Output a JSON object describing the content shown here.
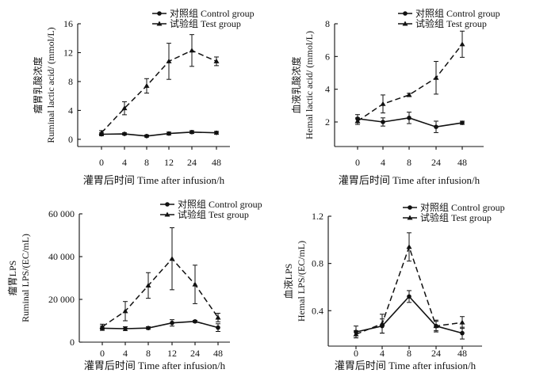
{
  "figure": {
    "colors": {
      "ink": "#111111",
      "background": "#ffffff"
    }
  },
  "chart_data": [
    {
      "type": "line",
      "ylabel_cn": "瘤胃乳酸浓度",
      "ylabel_en": "Ruminal lactic acid/ (mmol/L)",
      "xlabel": "灌胃后时间  Time after infusion/h",
      "x": [
        "0",
        "4",
        "8",
        "12",
        "24",
        "48"
      ],
      "ylim": [
        -1,
        16
      ],
      "yticks": [
        0,
        4,
        8,
        12,
        16
      ],
      "ytick_labels": [
        "0",
        "4",
        "8",
        "12",
        "16"
      ],
      "legend": {
        "position": "top-right",
        "entries": [
          "对照组  Control group",
          "试验组  Test group"
        ]
      },
      "series": [
        {
          "name": "对照组  Control group",
          "style": "solid",
          "marker": "circle",
          "values": [
            0.7,
            0.75,
            0.45,
            0.8,
            1.0,
            0.9
          ],
          "errors": [
            0.2,
            0.15,
            0.15,
            0.2,
            0.2,
            0.2
          ]
        },
        {
          "name": "试验组  Test group",
          "style": "dashed",
          "marker": "triangle",
          "values": [
            0.9,
            4.3,
            7.4,
            10.8,
            12.3,
            10.8
          ],
          "errors": [
            0.3,
            0.9,
            1.0,
            2.5,
            2.2,
            0.6
          ]
        }
      ]
    },
    {
      "type": "line",
      "ylabel_cn": "血液乳酸浓度",
      "ylabel_en": "Hemal lactic acid/ (mmol/L)",
      "xlabel": "灌胃后时间  Time after infusion/h",
      "x": [
        "0",
        "4",
        "8",
        "24",
        "48"
      ],
      "ylim": [
        0.5,
        8
      ],
      "yticks": [
        2,
        4,
        6,
        8
      ],
      "ytick_labels": [
        "2",
        "4",
        "6",
        "8"
      ],
      "legend": {
        "position": "top-right",
        "entries": [
          "对照组  Control group",
          "试验组  Test group"
        ]
      },
      "series": [
        {
          "name": "对照组  Control group",
          "style": "solid",
          "marker": "circle",
          "values": [
            2.2,
            2.0,
            2.25,
            1.7,
            1.95
          ],
          "errors": [
            0.25,
            0.25,
            0.35,
            0.35,
            0.1
          ]
        },
        {
          "name": "试验组  Test group",
          "style": "dashed",
          "marker": "triangle",
          "values": [
            2.05,
            3.1,
            3.65,
            4.7,
            6.75
          ],
          "errors": [
            0.2,
            0.55,
            0.1,
            1.0,
            0.8
          ]
        }
      ]
    },
    {
      "type": "line",
      "ylabel_cn": "瘤胃LPS",
      "ylabel_en": "Ruminal LPS/(EC/mL)",
      "xlabel": "灌胃后时间  Time after infusion/h",
      "x": [
        "0",
        "4",
        "8",
        "12",
        "24",
        "48"
      ],
      "ylim": [
        0,
        60000
      ],
      "yticks": [
        0,
        20000,
        40000,
        60000
      ],
      "ytick_labels": [
        "0",
        "20 000",
        "40 000",
        "60 000"
      ],
      "legend": {
        "position": "top-right",
        "entries": [
          "对照组  Control group",
          "试验组  Test group"
        ]
      },
      "series": [
        {
          "name": "对照组  Control group",
          "style": "solid",
          "marker": "circle",
          "values": [
            6500,
            6300,
            6600,
            9000,
            9700,
            6800
          ],
          "errors": [
            1000,
            900,
            600,
            1500,
            500,
            1800
          ]
        },
        {
          "name": "试验组  Test group",
          "style": "dashed",
          "marker": "triangle",
          "values": [
            7200,
            14500,
            26500,
            39000,
            27000,
            11500
          ],
          "errors": [
            1200,
            4500,
            6000,
            14500,
            9000,
            2000
          ]
        }
      ]
    },
    {
      "type": "line",
      "ylabel_cn": "血液LPS",
      "ylabel_en": "Hemal LPS/(EC/mL)",
      "xlabel": "灌胃后时间  Time after infusion/h",
      "x": [
        "0",
        "4",
        "8",
        "24",
        "48"
      ],
      "ylim": [
        0.1,
        1.2
      ],
      "yticks": [
        0.4,
        0.8,
        1.2
      ],
      "ytick_labels": [
        "0.4",
        "0.8",
        "1.2"
      ],
      "legend": {
        "position": "top-right",
        "entries": [
          "对照组  Control group",
          "试验组  Test group"
        ]
      },
      "series": [
        {
          "name": "对照组  Control group",
          "style": "solid",
          "marker": "circle",
          "values": [
            0.22,
            0.27,
            0.52,
            0.27,
            0.21
          ],
          "errors": [
            0.05,
            0.06,
            0.05,
            0.05,
            0.05
          ]
        },
        {
          "name": "试验组  Test group",
          "style": "dashed",
          "marker": "triangle",
          "values": [
            0.2,
            0.29,
            0.94,
            0.27,
            0.3
          ],
          "errors": [
            0.03,
            0.08,
            0.12,
            0.04,
            0.05
          ]
        }
      ]
    }
  ]
}
